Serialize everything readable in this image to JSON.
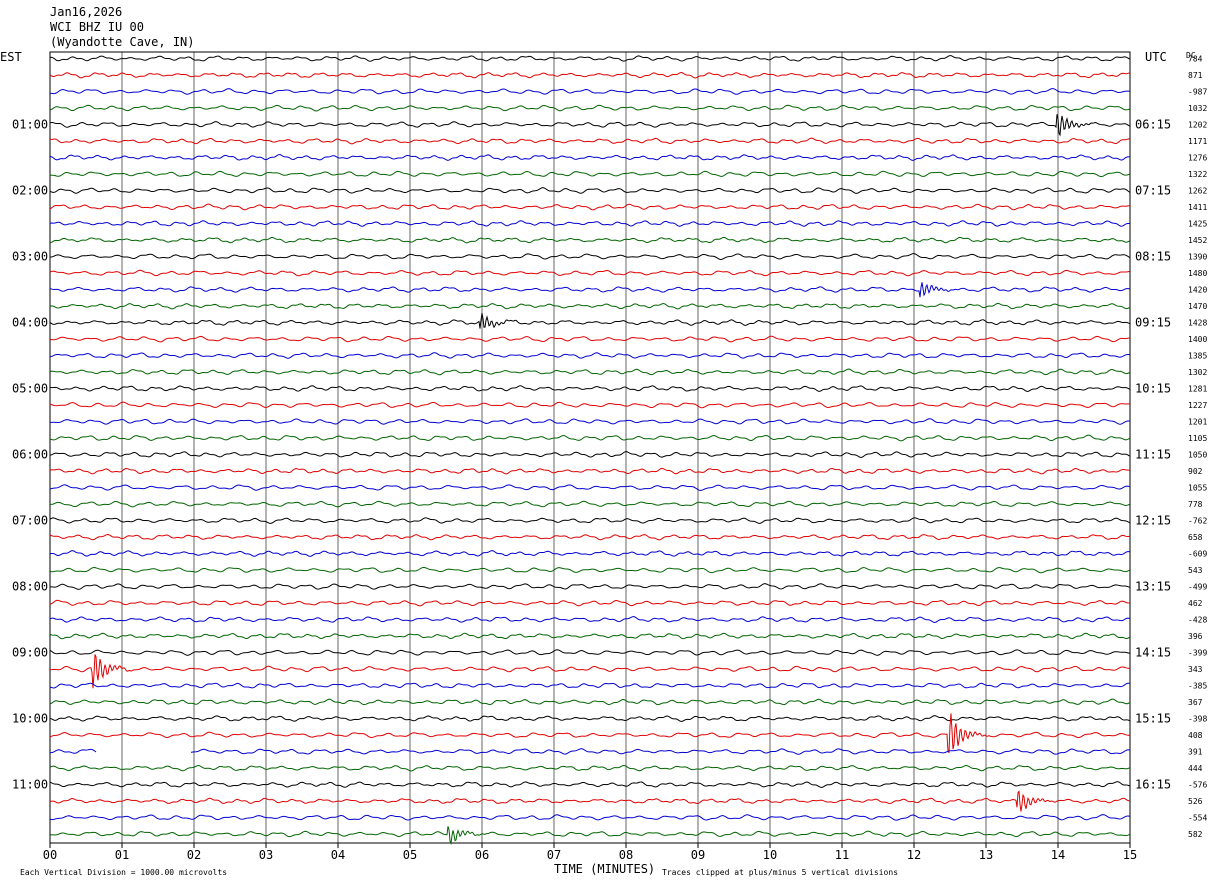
{
  "header": {
    "date": "Jan16,2026",
    "station": "WCI BHZ IU 00",
    "location": "(Wyandotte Cave, IN)"
  },
  "left_axis_label": "EST",
  "right_axis_label": "UTC",
  "dc_label": "DC",
  "footer": {
    "scale_note": "Each Vertical Division = 1000.00 microvolts",
    "xlabel": "TIME (MINUTES)",
    "clip_note": "Traces clipped at plus/minus 5 vertical divisions"
  },
  "chart_data": {
    "type": "line",
    "subtype": "helicorder",
    "xlabel": "TIME (MINUTES)",
    "xlim": [
      0,
      15
    ],
    "x_ticks": [
      "00",
      "01",
      "02",
      "03",
      "04",
      "05",
      "06",
      "07",
      "08",
      "09",
      "10",
      "11",
      "12",
      "13",
      "14",
      "15"
    ],
    "rows_per_hour": 4,
    "row_count": 48,
    "trace_colors": [
      "#000000",
      "#e00000",
      "#0000d0",
      "#006400"
    ],
    "est_hour_labels": [
      "01:00",
      "02:00",
      "03:00",
      "04:00",
      "05:00",
      "06:00",
      "07:00",
      "08:00",
      "09:00",
      "10:00",
      "11:00"
    ],
    "utc_hour_labels": [
      "06:15",
      "07:15",
      "08:15",
      "09:15",
      "10:15",
      "11:15",
      "12:15",
      "13:15",
      "14:15",
      "15:15",
      "16:15"
    ],
    "dc_values": [
      "784",
      "871",
      "-987",
      "1032",
      "1202",
      "1171",
      "1276",
      "1322",
      "1262",
      "1411",
      "1425",
      "1452",
      "1390",
      "1480",
      "1420",
      "1470",
      "1428",
      "1400",
      "1385",
      "1302",
      "1281",
      "1227",
      "1201",
      "1105",
      "1050",
      "902",
      "1055",
      "778",
      "-762",
      "658",
      "-609",
      "543",
      "-499",
      "462",
      "-428",
      "396",
      "-399",
      "343",
      "-385",
      "367",
      "-398",
      "408",
      "391",
      "444",
      "-576",
      "526",
      "-554",
      "582"
    ],
    "gaps": [
      {
        "row": 42,
        "start_min": 0.65,
        "end_min": 1.95
      }
    ],
    "events": [
      {
        "row": 37,
        "minute": 0.6,
        "amplitude": 2.2
      },
      {
        "row": 41,
        "minute": 12.5,
        "amplitude": 2.5
      },
      {
        "row": 4,
        "minute": 14.0,
        "amplitude": 1.4
      },
      {
        "row": 45,
        "minute": 13.45,
        "amplitude": 1.4
      },
      {
        "row": 47,
        "minute": 5.55,
        "amplitude": 1.0
      },
      {
        "row": 16,
        "minute": 6.0,
        "amplitude": 0.9
      },
      {
        "row": 14,
        "minute": 12.1,
        "amplitude": 0.9
      }
    ]
  }
}
